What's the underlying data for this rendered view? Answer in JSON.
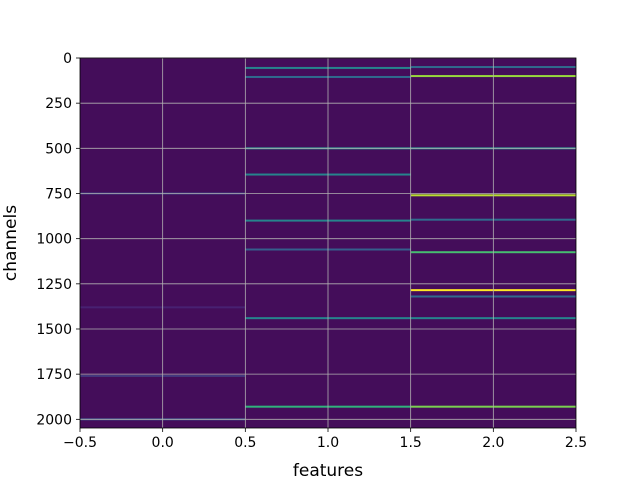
{
  "chart_data": {
    "type": "heatmap",
    "title": "",
    "xlabel": "features",
    "ylabel": "channels",
    "xlim": [
      -0.5,
      2.5
    ],
    "ylim": [
      2048,
      0
    ],
    "y_inverted": true,
    "grid": true,
    "colormap": "viridis",
    "background_value_color": "#440d5a",
    "columns": [
      0,
      1,
      2
    ],
    "x_ticks": [
      -0.5,
      0.0,
      0.5,
      1.0,
      1.5,
      2.0,
      2.5
    ],
    "x_tick_labels": [
      "−0.5",
      "0.0",
      "0.5",
      "1.0",
      "1.5",
      "2.0",
      "2.5"
    ],
    "y_ticks": [
      0,
      250,
      500,
      750,
      1000,
      1250,
      1500,
      1750,
      2000
    ],
    "y_tick_labels": [
      "0",
      "250",
      "500",
      "750",
      "1000",
      "1250",
      "1500",
      "1750",
      "2000"
    ],
    "highlights": [
      {
        "column": 0,
        "channel": 750,
        "intensity": 0.2
      },
      {
        "column": 0,
        "channel": 1760,
        "intensity": 0.18
      },
      {
        "column": 0,
        "channel": 2000,
        "intensity": 0.25
      },
      {
        "column": 0,
        "channel": 1380,
        "intensity": 0.12
      },
      {
        "column": 1,
        "channel": 55,
        "intensity": 0.45
      },
      {
        "column": 1,
        "channel": 105,
        "intensity": 0.35
      },
      {
        "column": 1,
        "channel": 500,
        "intensity": 0.5
      },
      {
        "column": 1,
        "channel": 645,
        "intensity": 0.45
      },
      {
        "column": 1,
        "channel": 900,
        "intensity": 0.45
      },
      {
        "column": 1,
        "channel": 1060,
        "intensity": 0.3
      },
      {
        "column": 1,
        "channel": 1440,
        "intensity": 0.45
      },
      {
        "column": 1,
        "channel": 1930,
        "intensity": 0.65
      },
      {
        "column": 2,
        "channel": 50,
        "intensity": 0.35
      },
      {
        "column": 2,
        "channel": 100,
        "intensity": 0.85
      },
      {
        "column": 2,
        "channel": 500,
        "intensity": 0.5
      },
      {
        "column": 2,
        "channel": 760,
        "intensity": 0.9
      },
      {
        "column": 2,
        "channel": 895,
        "intensity": 0.35
      },
      {
        "column": 2,
        "channel": 1075,
        "intensity": 0.7
      },
      {
        "column": 2,
        "channel": 1285,
        "intensity": 1.0
      },
      {
        "column": 2,
        "channel": 1320,
        "intensity": 0.35
      },
      {
        "column": 2,
        "channel": 1440,
        "intensity": 0.45
      },
      {
        "column": 2,
        "channel": 1930,
        "intensity": 0.8
      }
    ]
  }
}
